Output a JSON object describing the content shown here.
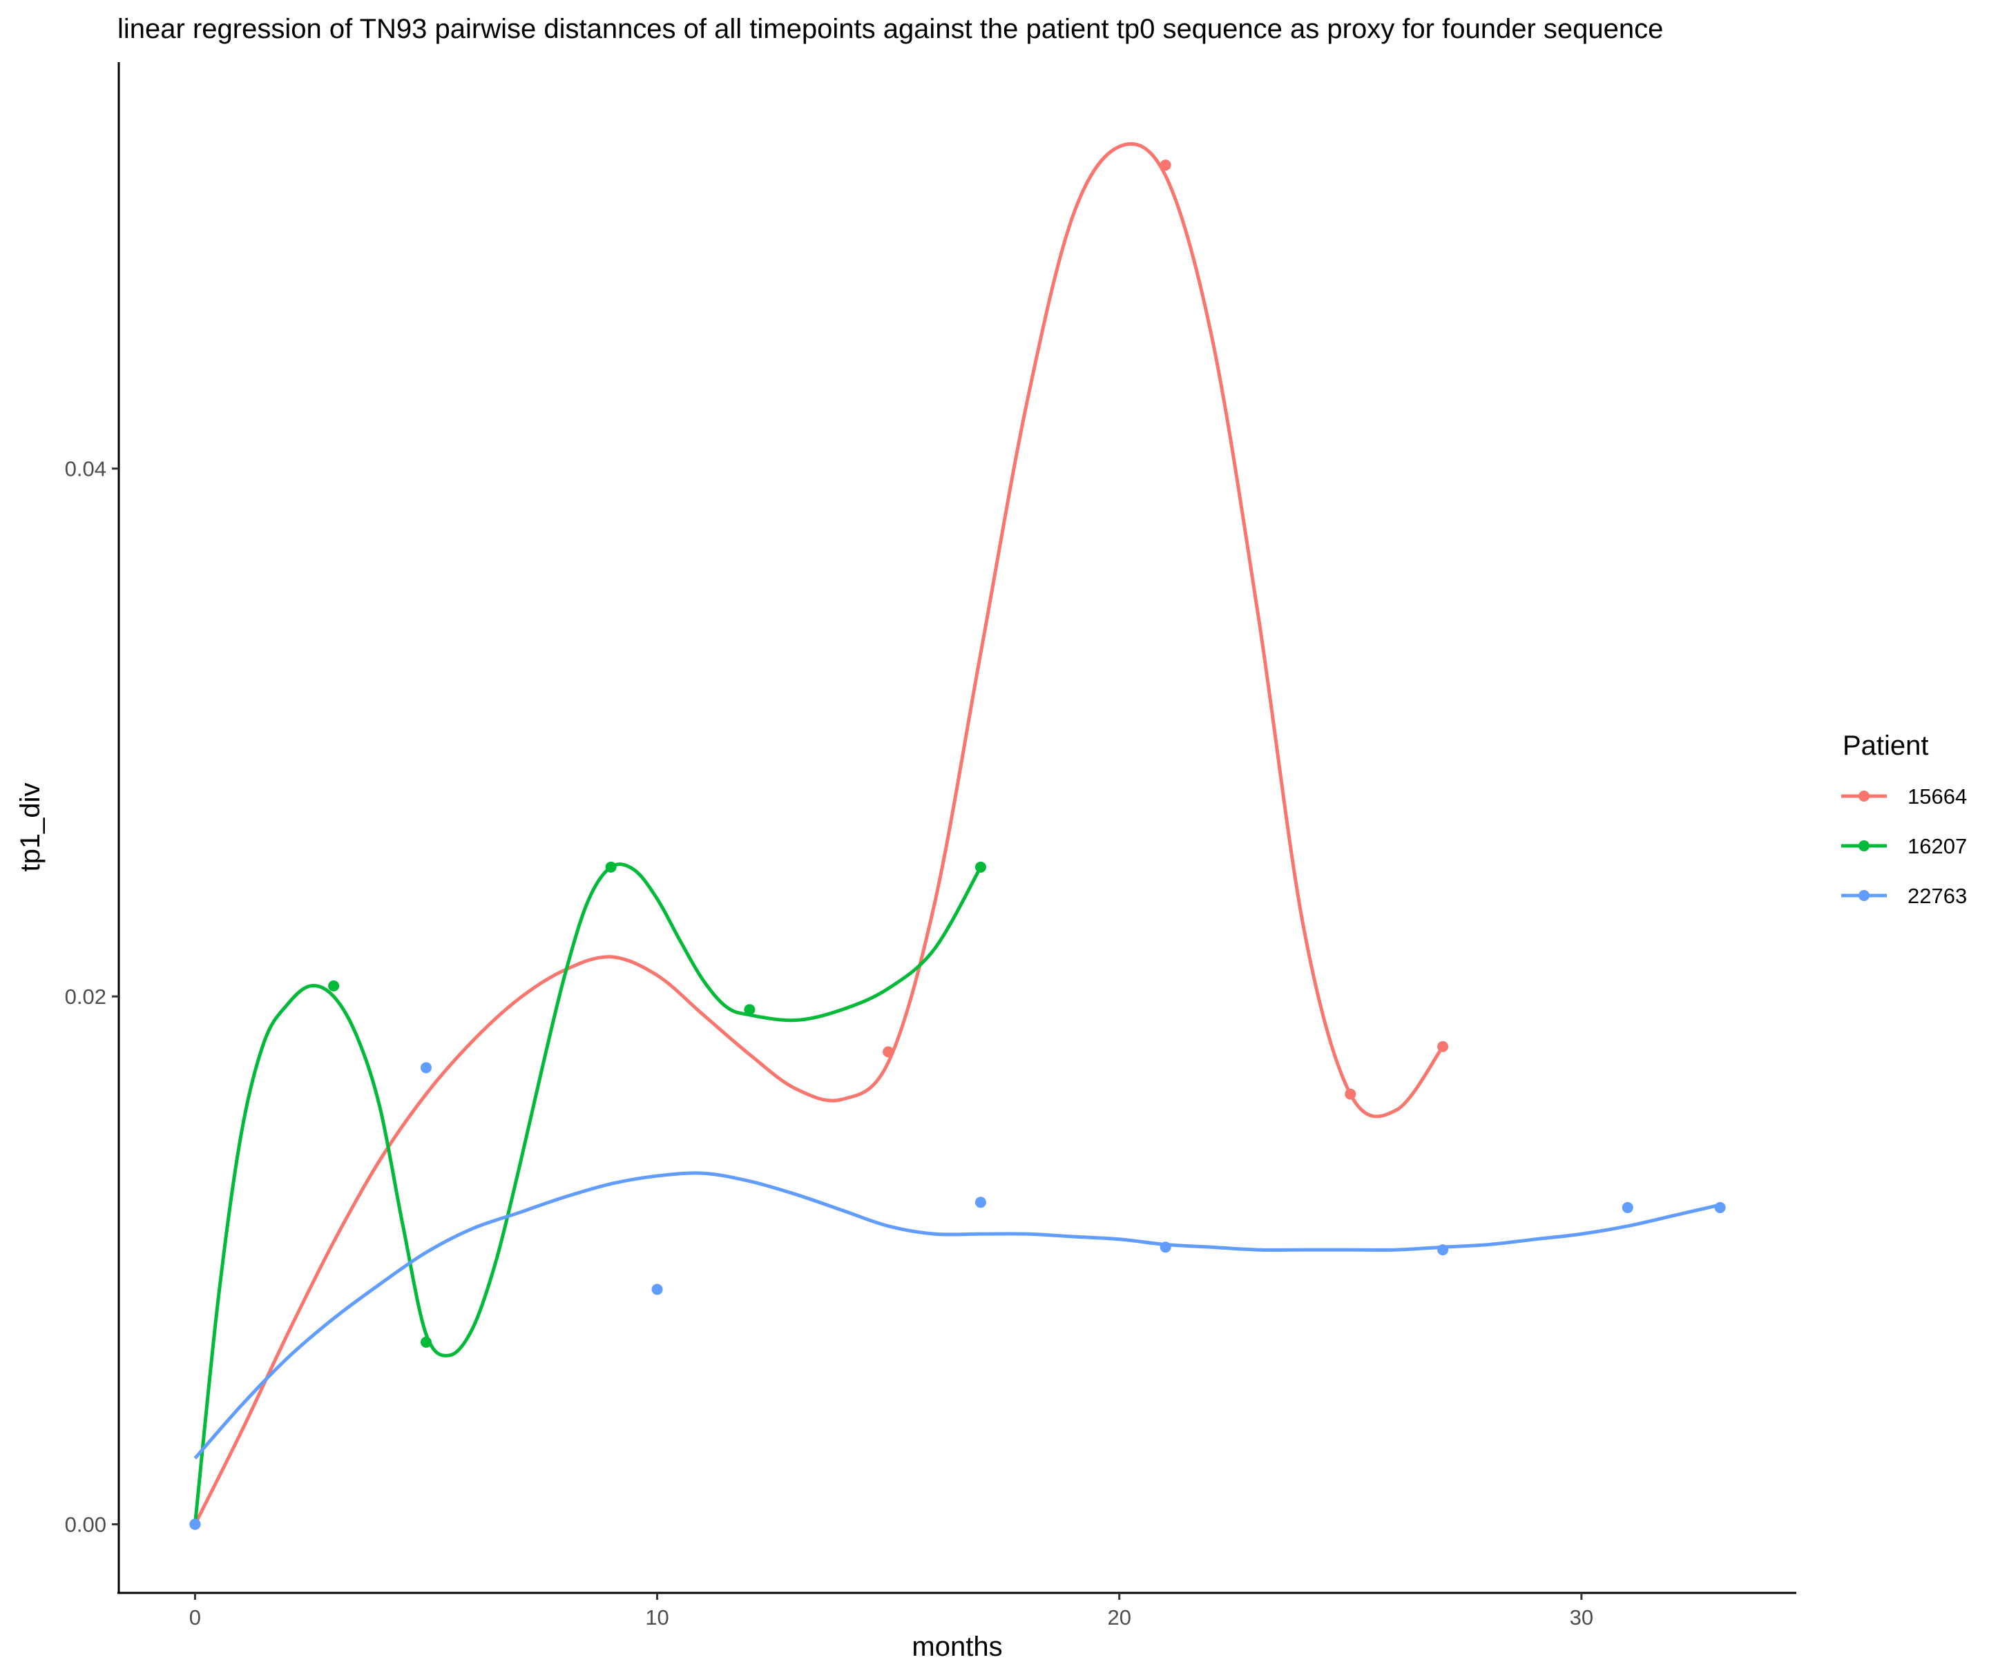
{
  "chart_data": {
    "type": "line",
    "title": "linear regression of TN93 pairwise distannces of all timepoints against the patient tp0 sequence as proxy for founder sequence",
    "xlabel": "months",
    "ylabel": "tp1_div",
    "xlim": [
      -1.65,
      34.65
    ],
    "ylim": [
      -0.0026,
      0.0554
    ],
    "x_ticks": [
      0,
      10,
      20,
      30
    ],
    "x_tick_labels": [
      "0",
      "10",
      "20",
      "30"
    ],
    "y_ticks": [
      0.0,
      0.02,
      0.04
    ],
    "y_tick_labels": [
      "0.00",
      "0.02",
      "0.04"
    ],
    "grid": false,
    "legend": {
      "title": "Patient",
      "position": "right"
    },
    "series": [
      {
        "name": "15664",
        "color": "#F8766D",
        "points": [
          [
            0,
            0.0
          ],
          [
            15,
            0.0179
          ],
          [
            21,
            0.0515
          ],
          [
            25,
            0.0163
          ],
          [
            27,
            0.0181
          ]
        ],
        "smooth": [
          [
            0,
            0.0
          ],
          [
            1,
            0.0035
          ],
          [
            2,
            0.0072
          ],
          [
            3,
            0.0107
          ],
          [
            4,
            0.0138
          ],
          [
            5,
            0.0163
          ],
          [
            6,
            0.0183
          ],
          [
            7,
            0.0199
          ],
          [
            8,
            0.021
          ],
          [
            9,
            0.0215
          ],
          [
            10,
            0.0208
          ],
          [
            11,
            0.0193
          ],
          [
            12,
            0.0178
          ],
          [
            13,
            0.0165
          ],
          [
            14,
            0.0161
          ],
          [
            15,
            0.0175
          ],
          [
            16,
            0.0235
          ],
          [
            17,
            0.033
          ],
          [
            18,
            0.0425
          ],
          [
            19,
            0.0496
          ],
          [
            20,
            0.0522
          ],
          [
            21,
            0.0511
          ],
          [
            22,
            0.045
          ],
          [
            23,
            0.0345
          ],
          [
            24,
            0.0225
          ],
          [
            25,
            0.0163
          ],
          [
            26,
            0.0157
          ],
          [
            27,
            0.0181
          ]
        ]
      },
      {
        "name": "16207",
        "color": "#00BA38",
        "points": [
          [
            0,
            0.0
          ],
          [
            3,
            0.0204
          ],
          [
            5,
            0.0069
          ],
          [
            9,
            0.0249
          ],
          [
            12,
            0.0195
          ],
          [
            17,
            0.0249
          ]
        ],
        "smooth": [
          [
            0,
            0.0
          ],
          [
            0.5,
            0.0085
          ],
          [
            1,
            0.0148
          ],
          [
            1.5,
            0.0183
          ],
          [
            2,
            0.0197
          ],
          [
            2.5,
            0.0204
          ],
          [
            3,
            0.02
          ],
          [
            3.5,
            0.0185
          ],
          [
            4,
            0.0158
          ],
          [
            4.5,
            0.0113
          ],
          [
            5,
            0.0072
          ],
          [
            5.5,
            0.0064
          ],
          [
            6,
            0.0074
          ],
          [
            6.5,
            0.0099
          ],
          [
            7,
            0.0134
          ],
          [
            7.5,
            0.0172
          ],
          [
            8,
            0.0208
          ],
          [
            8.5,
            0.0236
          ],
          [
            9,
            0.0249
          ],
          [
            9.5,
            0.0248
          ],
          [
            10,
            0.0237
          ],
          [
            10.5,
            0.0221
          ],
          [
            11,
            0.0206
          ],
          [
            11.5,
            0.0196
          ],
          [
            12,
            0.0193
          ],
          [
            13,
            0.0191
          ],
          [
            14,
            0.0195
          ],
          [
            15,
            0.0203
          ],
          [
            16,
            0.0218
          ],
          [
            17,
            0.0249
          ]
        ]
      },
      {
        "name": "22763",
        "color": "#619CFF",
        "points": [
          [
            0,
            0.0
          ],
          [
            5,
            0.0173
          ],
          [
            10,
            0.0089
          ],
          [
            17,
            0.0122
          ],
          [
            21,
            0.0105
          ],
          [
            27,
            0.0104
          ],
          [
            31,
            0.012
          ],
          [
            33,
            0.012
          ]
        ],
        "smooth": [
          [
            0,
            0.0025
          ],
          [
            1,
            0.0045
          ],
          [
            2,
            0.0063
          ],
          [
            3,
            0.0078
          ],
          [
            4,
            0.0091
          ],
          [
            5,
            0.0103
          ],
          [
            6,
            0.0112
          ],
          [
            7,
            0.0118
          ],
          [
            8,
            0.0124
          ],
          [
            9,
            0.0129
          ],
          [
            10,
            0.0132
          ],
          [
            11,
            0.0133
          ],
          [
            12,
            0.013
          ],
          [
            13,
            0.0125
          ],
          [
            14,
            0.0119
          ],
          [
            15,
            0.0113
          ],
          [
            16,
            0.011
          ],
          [
            17,
            0.011
          ],
          [
            18,
            0.011
          ],
          [
            19,
            0.0109
          ],
          [
            20,
            0.0108
          ],
          [
            21,
            0.0106
          ],
          [
            22,
            0.0105
          ],
          [
            23,
            0.0104
          ],
          [
            24,
            0.0104
          ],
          [
            25,
            0.0104
          ],
          [
            26,
            0.0104
          ],
          [
            27,
            0.0105
          ],
          [
            28,
            0.0106
          ],
          [
            29,
            0.0108
          ],
          [
            30,
            0.011
          ],
          [
            31,
            0.0113
          ],
          [
            32,
            0.0117
          ],
          [
            33,
            0.0121
          ]
        ]
      }
    ]
  }
}
